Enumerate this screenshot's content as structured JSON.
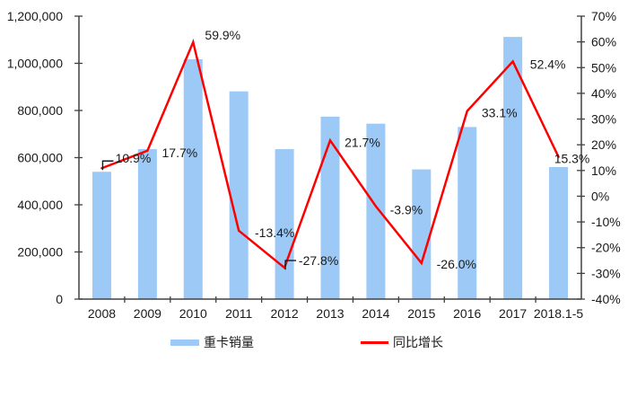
{
  "colors": {
    "bar": "#9CC9F6",
    "line": "#FF0000",
    "axis": "#404040",
    "text": "#1A1A1A",
    "background": "#FFFFFF"
  },
  "chart_data": {
    "type": "bar",
    "subtype": "combo-bar-line-dual-axis",
    "title": "",
    "grid": false,
    "categories": [
      "2008",
      "2009",
      "2010",
      "2011",
      "2012",
      "2013",
      "2014",
      "2015",
      "2016",
      "2017",
      "2018.1-5"
    ],
    "series": [
      {
        "name": "重卡销量",
        "chart_type": "bar",
        "axis": "left",
        "color": "#9CC9F6",
        "values": [
          540000,
          636000,
          1017000,
          881000,
          636000,
          774000,
          744000,
          550000,
          730000,
          1112000,
          560000
        ]
      },
      {
        "name": "同比增长",
        "chart_type": "line",
        "axis": "right",
        "color": "#FF0000",
        "values": [
          10.9,
          17.7,
          59.9,
          -13.4,
          -27.8,
          21.7,
          -3.9,
          -26.0,
          33.1,
          52.4,
          15.3
        ],
        "point_labels": [
          {
            "text": "10.9%",
            "dx": 35,
            "dy": -11,
            "leader": true
          },
          {
            "text": "17.7%",
            "dx": 36,
            "dy": 2,
            "leader": false
          },
          {
            "text": "59.9%",
            "dx": 33,
            "dy": -8,
            "leader": false
          },
          {
            "text": "-13.4%",
            "dx": 40,
            "dy": 2,
            "leader": false
          },
          {
            "text": "-27.8%",
            "dx": 38,
            "dy": -8,
            "leader": true
          },
          {
            "text": "21.7%",
            "dx": 36,
            "dy": 2,
            "leader": false
          },
          {
            "text": "-3.9%",
            "dx": 34,
            "dy": 4,
            "leader": false
          },
          {
            "text": "-26.0%",
            "dx": 39,
            "dy": 1,
            "leader": false
          },
          {
            "text": "33.1%",
            "dx": 36,
            "dy": 2,
            "leader": false
          },
          {
            "text": "52.4%",
            "dx": 39,
            "dy": 3,
            "leader": false
          },
          {
            "text": "15.3%",
            "dx": 15,
            "dy": 2,
            "leader": false
          }
        ]
      }
    ],
    "left_axis": {
      "min": 0,
      "max": 1200000,
      "step": 200000,
      "tick_labels": [
        "1,200,000",
        "1,000,000",
        "800,000",
        "600,000",
        "400,000",
        "200,000",
        "0"
      ]
    },
    "right_axis": {
      "min": -40,
      "max": 70,
      "step": 10,
      "tick_labels": [
        "70%",
        "60%",
        "50%",
        "40%",
        "30%",
        "20%",
        "10%",
        "0%",
        "-10%",
        "-20%",
        "-30%",
        "-40%"
      ]
    },
    "legend": {
      "position": "bottom",
      "items": [
        {
          "label": "重卡销量",
          "swatch": "bar",
          "color": "#9CC9F6"
        },
        {
          "label": "同比增长",
          "swatch": "line",
          "color": "#FF0000"
        }
      ]
    }
  }
}
